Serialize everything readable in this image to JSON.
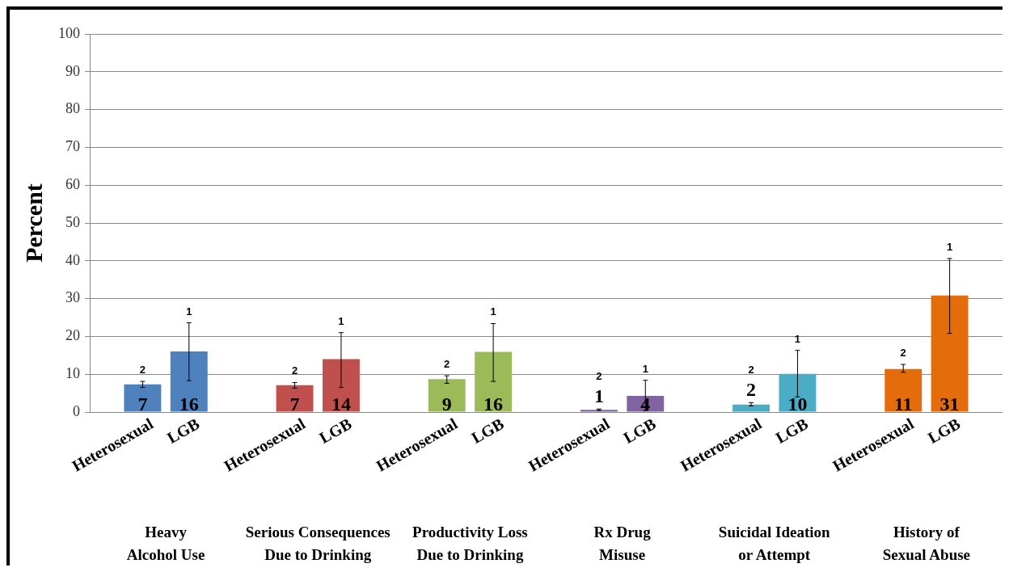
{
  "chart_data": {
    "type": "bar",
    "ylabel": "Percent",
    "categories": [
      "Heavy\nAlcohol Use",
      "Serious Consequences\nDue to Drinking",
      "Productivity Loss\nDue to Drinking",
      "Rx Drug\nMisuse",
      "Suicidal Ideation\nor Attempt",
      "History of\nSexual Abuse"
    ],
    "series": [
      {
        "name": "Heterosexual",
        "colors": [
          "#4f81bd",
          "#c0504d",
          "#9bbb59",
          "#8064a2",
          "#4bacc6",
          "#e46c0a"
        ],
        "values": [
          7.3,
          7.1,
          8.7,
          0.6,
          2.0,
          11.4
        ],
        "errors": [
          [
            6.5,
            8.1
          ],
          [
            6.3,
            7.8
          ],
          [
            7.6,
            9.6
          ],
          [
            0.4,
            0.8
          ],
          [
            1.6,
            2.5
          ],
          [
            10.5,
            12.6
          ]
        ],
        "value_labels": [
          "7",
          "7",
          "9",
          "1",
          "2",
          "11"
        ]
      },
      {
        "name": "LGB",
        "colors": [
          "#4f81bd",
          "#c0504d",
          "#9bbb59",
          "#8064a2",
          "#4bacc6",
          "#e46c0a"
        ],
        "values": [
          16.0,
          14.0,
          15.9,
          4.3,
          10.1,
          30.8
        ],
        "errors": [
          [
            8.3,
            23.6
          ],
          [
            6.5,
            21.0
          ],
          [
            8.1,
            23.4
          ],
          [
            0.4,
            8.4
          ],
          [
            4.0,
            16.3
          ],
          [
            20.8,
            40.6
          ]
        ],
        "value_labels": [
          "16",
          "14",
          "16",
          "4",
          "10",
          "31"
        ]
      }
    ],
    "annotations": [
      "2",
      "1",
      "2",
      "1",
      "2",
      "1",
      "2",
      "1",
      "2",
      "1",
      "2",
      "1"
    ],
    "ylim": [
      0,
      100
    ],
    "yticks": [
      0,
      10,
      20,
      30,
      40,
      50,
      60,
      70,
      80,
      90,
      100
    ],
    "grid": "y",
    "legend": false
  }
}
